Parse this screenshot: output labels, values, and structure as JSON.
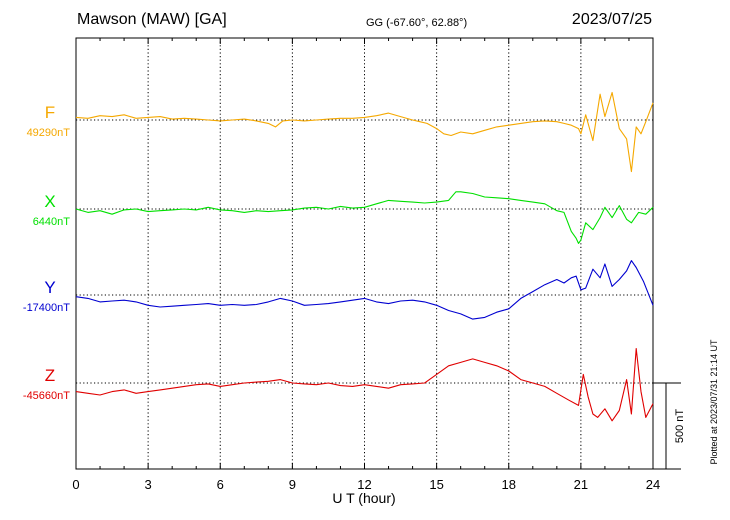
{
  "header": {
    "station": "Mawson (MAW)  [GA]",
    "coords": "GG (-67.60°,  62.88°)",
    "date": "2023/07/25"
  },
  "footer": {
    "plotted": "Plotted at 2023/07/31 21:14 UT",
    "scale_label": "500 nT"
  },
  "colors": {
    "F": "#f5a800",
    "X": "#00e000",
    "Y": "#0000d0",
    "Z": "#e00000"
  },
  "chart_data": {
    "type": "line",
    "xlabel": "U T (hour)",
    "xlim": [
      0,
      24
    ],
    "xticks": [
      "0",
      "3",
      "6",
      "9",
      "12",
      "15",
      "18",
      "21",
      "24"
    ],
    "y_scale_nT": 500,
    "grid": "vertical dotted every 3 h, dotted baseline per trace",
    "series": [
      {
        "key": "F",
        "name": "F",
        "baseline_label": "49290nT",
        "x": [
          0,
          0.5,
          1,
          1.5,
          2,
          2.5,
          3,
          3.5,
          4,
          4.5,
          5,
          5.5,
          6,
          6.5,
          7,
          7.5,
          8,
          8.3,
          8.6,
          9,
          9.5,
          10,
          10.5,
          11,
          11.5,
          12,
          12.5,
          13,
          13.5,
          14,
          14.3,
          14.6,
          15,
          15.3,
          15.6,
          16,
          16.5,
          17,
          17.5,
          18,
          18.5,
          19,
          19.5,
          20,
          20.3,
          20.6,
          20.9,
          21.0,
          21.2,
          21.5,
          21.8,
          22.0,
          22.3,
          22.6,
          22.9,
          23.1,
          23.3,
          23.5,
          23.7,
          24
        ],
        "values": [
          15,
          10,
          25,
          20,
          30,
          10,
          15,
          20,
          5,
          10,
          5,
          0,
          -5,
          0,
          5,
          -5,
          -20,
          -40,
          -5,
          0,
          -5,
          0,
          5,
          10,
          10,
          15,
          25,
          40,
          20,
          0,
          -10,
          -20,
          -50,
          -80,
          -90,
          -70,
          -80,
          -60,
          -40,
          -30,
          -20,
          -10,
          -5,
          -10,
          -20,
          -30,
          -50,
          -80,
          30,
          -120,
          150,
          20,
          160,
          -50,
          -110,
          -300,
          -40,
          -80,
          -10,
          100
        ]
      },
      {
        "key": "X",
        "name": "X",
        "baseline_label": "6440nT",
        "x": [
          0,
          0.5,
          1,
          1.5,
          2,
          2.5,
          3,
          3.5,
          4,
          4.5,
          5,
          5.5,
          6,
          6.5,
          7,
          7.5,
          8,
          8.5,
          9,
          9.5,
          10,
          10.5,
          11,
          11.5,
          12,
          12.5,
          13,
          13.5,
          14,
          14.5,
          15,
          15.5,
          15.8,
          16,
          16.5,
          17,
          17.5,
          18,
          18.5,
          19,
          19.5,
          20,
          20.3,
          20.6,
          20.8,
          20.9,
          21.0,
          21.2,
          21.5,
          21.8,
          22.0,
          22.3,
          22.6,
          22.9,
          23.1,
          23.4,
          23.7,
          24
        ],
        "values": [
          0,
          -20,
          -10,
          -30,
          -5,
          0,
          -15,
          -10,
          -5,
          0,
          -5,
          10,
          -5,
          -10,
          -20,
          -10,
          -15,
          -10,
          -5,
          5,
          10,
          0,
          15,
          5,
          10,
          30,
          50,
          45,
          40,
          35,
          40,
          50,
          100,
          100,
          90,
          70,
          65,
          60,
          50,
          40,
          30,
          -10,
          -20,
          -130,
          -170,
          -200,
          -180,
          -80,
          -120,
          -50,
          10,
          -50,
          20,
          -60,
          -80,
          -20,
          -30,
          10
        ]
      },
      {
        "key": "Y",
        "name": "Y",
        "baseline_label": "-17400nT",
        "x": [
          0,
          0.5,
          1,
          1.5,
          2,
          2.5,
          3,
          3.5,
          4,
          4.5,
          5,
          5.5,
          6,
          6.5,
          7,
          7.5,
          8,
          8.5,
          9,
          9.5,
          10,
          10.5,
          11,
          11.5,
          12,
          12.5,
          13,
          13.5,
          14,
          14.5,
          15,
          15.5,
          16,
          16.5,
          17,
          17.5,
          18,
          18.5,
          19,
          19.5,
          20,
          20.3,
          20.6,
          20.8,
          21.0,
          21.2,
          21.5,
          21.8,
          22.0,
          22.3,
          22.6,
          22.9,
          23.1,
          23.3,
          23.6,
          24
        ],
        "values": [
          -10,
          -20,
          -40,
          -35,
          -30,
          -40,
          -60,
          -70,
          -65,
          -60,
          -55,
          -50,
          -60,
          -55,
          -60,
          -55,
          -40,
          -20,
          -35,
          -60,
          -55,
          -50,
          -40,
          -30,
          -20,
          -40,
          -50,
          -35,
          -30,
          -40,
          -60,
          -90,
          -110,
          -140,
          -130,
          -100,
          -80,
          -20,
          20,
          60,
          90,
          70,
          100,
          110,
          30,
          40,
          150,
          100,
          180,
          50,
          90,
          140,
          200,
          160,
          80,
          -60
        ]
      },
      {
        "key": "Z",
        "name": "Z",
        "baseline_label": "-45660nT",
        "x": [
          0,
          0.5,
          1,
          1.5,
          2,
          2.5,
          3,
          3.5,
          4,
          4.5,
          5,
          5.5,
          6,
          6.5,
          7,
          7.5,
          8,
          8.5,
          9,
          9.5,
          10,
          10.5,
          11,
          11.5,
          12,
          12.5,
          13,
          13.5,
          14,
          14.5,
          15,
          15.5,
          16,
          16.5,
          17,
          17.5,
          18,
          18.5,
          19,
          19.5,
          20,
          20.5,
          20.9,
          21.1,
          21.3,
          21.5,
          21.7,
          22.0,
          22.3,
          22.6,
          22.9,
          23.1,
          23.3,
          23.5,
          23.7,
          24
        ],
        "values": [
          -50,
          -60,
          -70,
          -50,
          -40,
          -60,
          -50,
          -40,
          -30,
          -20,
          -10,
          -5,
          -20,
          -10,
          0,
          5,
          10,
          20,
          0,
          -5,
          -10,
          0,
          -15,
          -20,
          -10,
          -20,
          -30,
          -10,
          -5,
          0,
          50,
          100,
          120,
          140,
          120,
          100,
          70,
          20,
          0,
          -20,
          -60,
          -100,
          -130,
          50,
          -80,
          -180,
          -200,
          -150,
          -220,
          -160,
          20,
          -180,
          200,
          -50,
          -200,
          -120
        ]
      }
    ]
  }
}
